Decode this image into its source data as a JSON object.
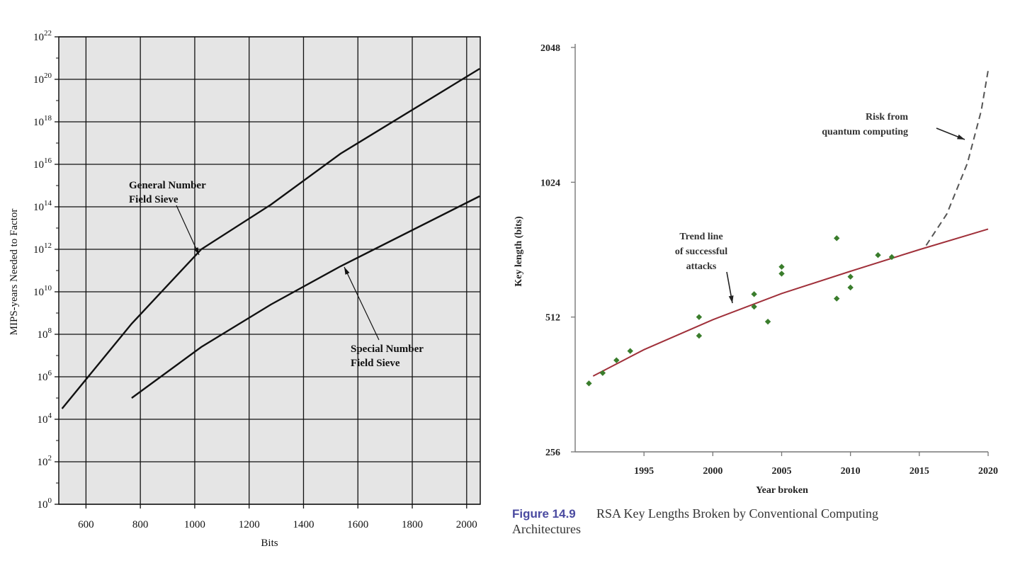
{
  "chart_data": [
    {
      "type": "line",
      "xlabel": "Bits",
      "ylabel": "MIPS-years Needed to Factor",
      "x_ticks": [
        600,
        800,
        1000,
        1200,
        1400,
        1600,
        1800,
        2000
      ],
      "xlim": [
        500,
        2050
      ],
      "y_scale": "log10",
      "ylim_exponent": [
        0,
        22
      ],
      "y_tick_exponents": [
        0,
        2,
        4,
        6,
        8,
        10,
        12,
        14,
        16,
        18,
        20,
        22
      ],
      "y_tick_base": "10",
      "grid": true,
      "series": [
        {
          "name": "General Number Field Sieve",
          "x": [
            512,
            768,
            1024,
            1280,
            1536,
            2048
          ],
          "log10_y": [
            4.5,
            8.5,
            12.0,
            14.1,
            16.5,
            20.5
          ]
        },
        {
          "name": "Special Number Field Sieve",
          "x": [
            768,
            1024,
            1280,
            1536,
            2048
          ],
          "log10_y": [
            5.0,
            7.4,
            9.4,
            11.2,
            14.5
          ]
        }
      ],
      "annotations": [
        {
          "lines": [
            "General Number",
            "Field Sieve"
          ],
          "target_series": 0
        },
        {
          "lines": [
            "Special Number",
            "Field Sieve"
          ],
          "target_series": 1
        }
      ]
    },
    {
      "type": "scatter",
      "xlabel": "Year broken",
      "ylabel": "Key length (bits)",
      "x_ticks": [
        1995,
        2000,
        2005,
        2010,
        2015,
        2020
      ],
      "xlim": [
        1990,
        2020
      ],
      "y_scale": "log2",
      "y_ticks": [
        256,
        512,
        1024,
        2048
      ],
      "ylim": [
        256,
        2048
      ],
      "points": [
        {
          "x": 1991,
          "y": 364
        },
        {
          "x": 1992,
          "y": 384
        },
        {
          "x": 1993,
          "y": 410
        },
        {
          "x": 1994,
          "y": 430
        },
        {
          "x": 1999,
          "y": 465
        },
        {
          "x": 1999,
          "y": 512
        },
        {
          "x": 2003,
          "y": 540
        },
        {
          "x": 2003,
          "y": 576
        },
        {
          "x": 2004,
          "y": 500
        },
        {
          "x": 2005,
          "y": 640
        },
        {
          "x": 2005,
          "y": 663
        },
        {
          "x": 2009,
          "y": 563
        },
        {
          "x": 2009,
          "y": 768
        },
        {
          "x": 2010,
          "y": 596
        },
        {
          "x": 2010,
          "y": 630
        },
        {
          "x": 2012,
          "y": 704
        },
        {
          "x": 2013,
          "y": 697
        }
      ],
      "trend": {
        "x": [
          1991.3,
          1995,
          2000,
          2005,
          2010,
          2015,
          2020
        ],
        "y": [
          378,
          433,
          505,
          578,
          648,
          724,
          805
        ]
      },
      "quantum_risk": {
        "x": [
          2015.5,
          2017,
          2018.5,
          2019.5,
          2020
        ],
        "y": [
          740,
          870,
          1130,
          1480,
          1820
        ]
      },
      "annotations": [
        {
          "lines": [
            "Trend line",
            "of successful",
            "attacks"
          ]
        },
        {
          "lines": [
            "Risk from",
            "quantum computing"
          ]
        }
      ],
      "colors": {
        "points": "#3a7d2c",
        "trend": "#a0303a",
        "risk": "#555555"
      }
    }
  ],
  "caption": {
    "label": "Figure 14.9",
    "line1": "RSA Key Lengths Broken by Conventional Computing",
    "line2": "Architectures"
  }
}
